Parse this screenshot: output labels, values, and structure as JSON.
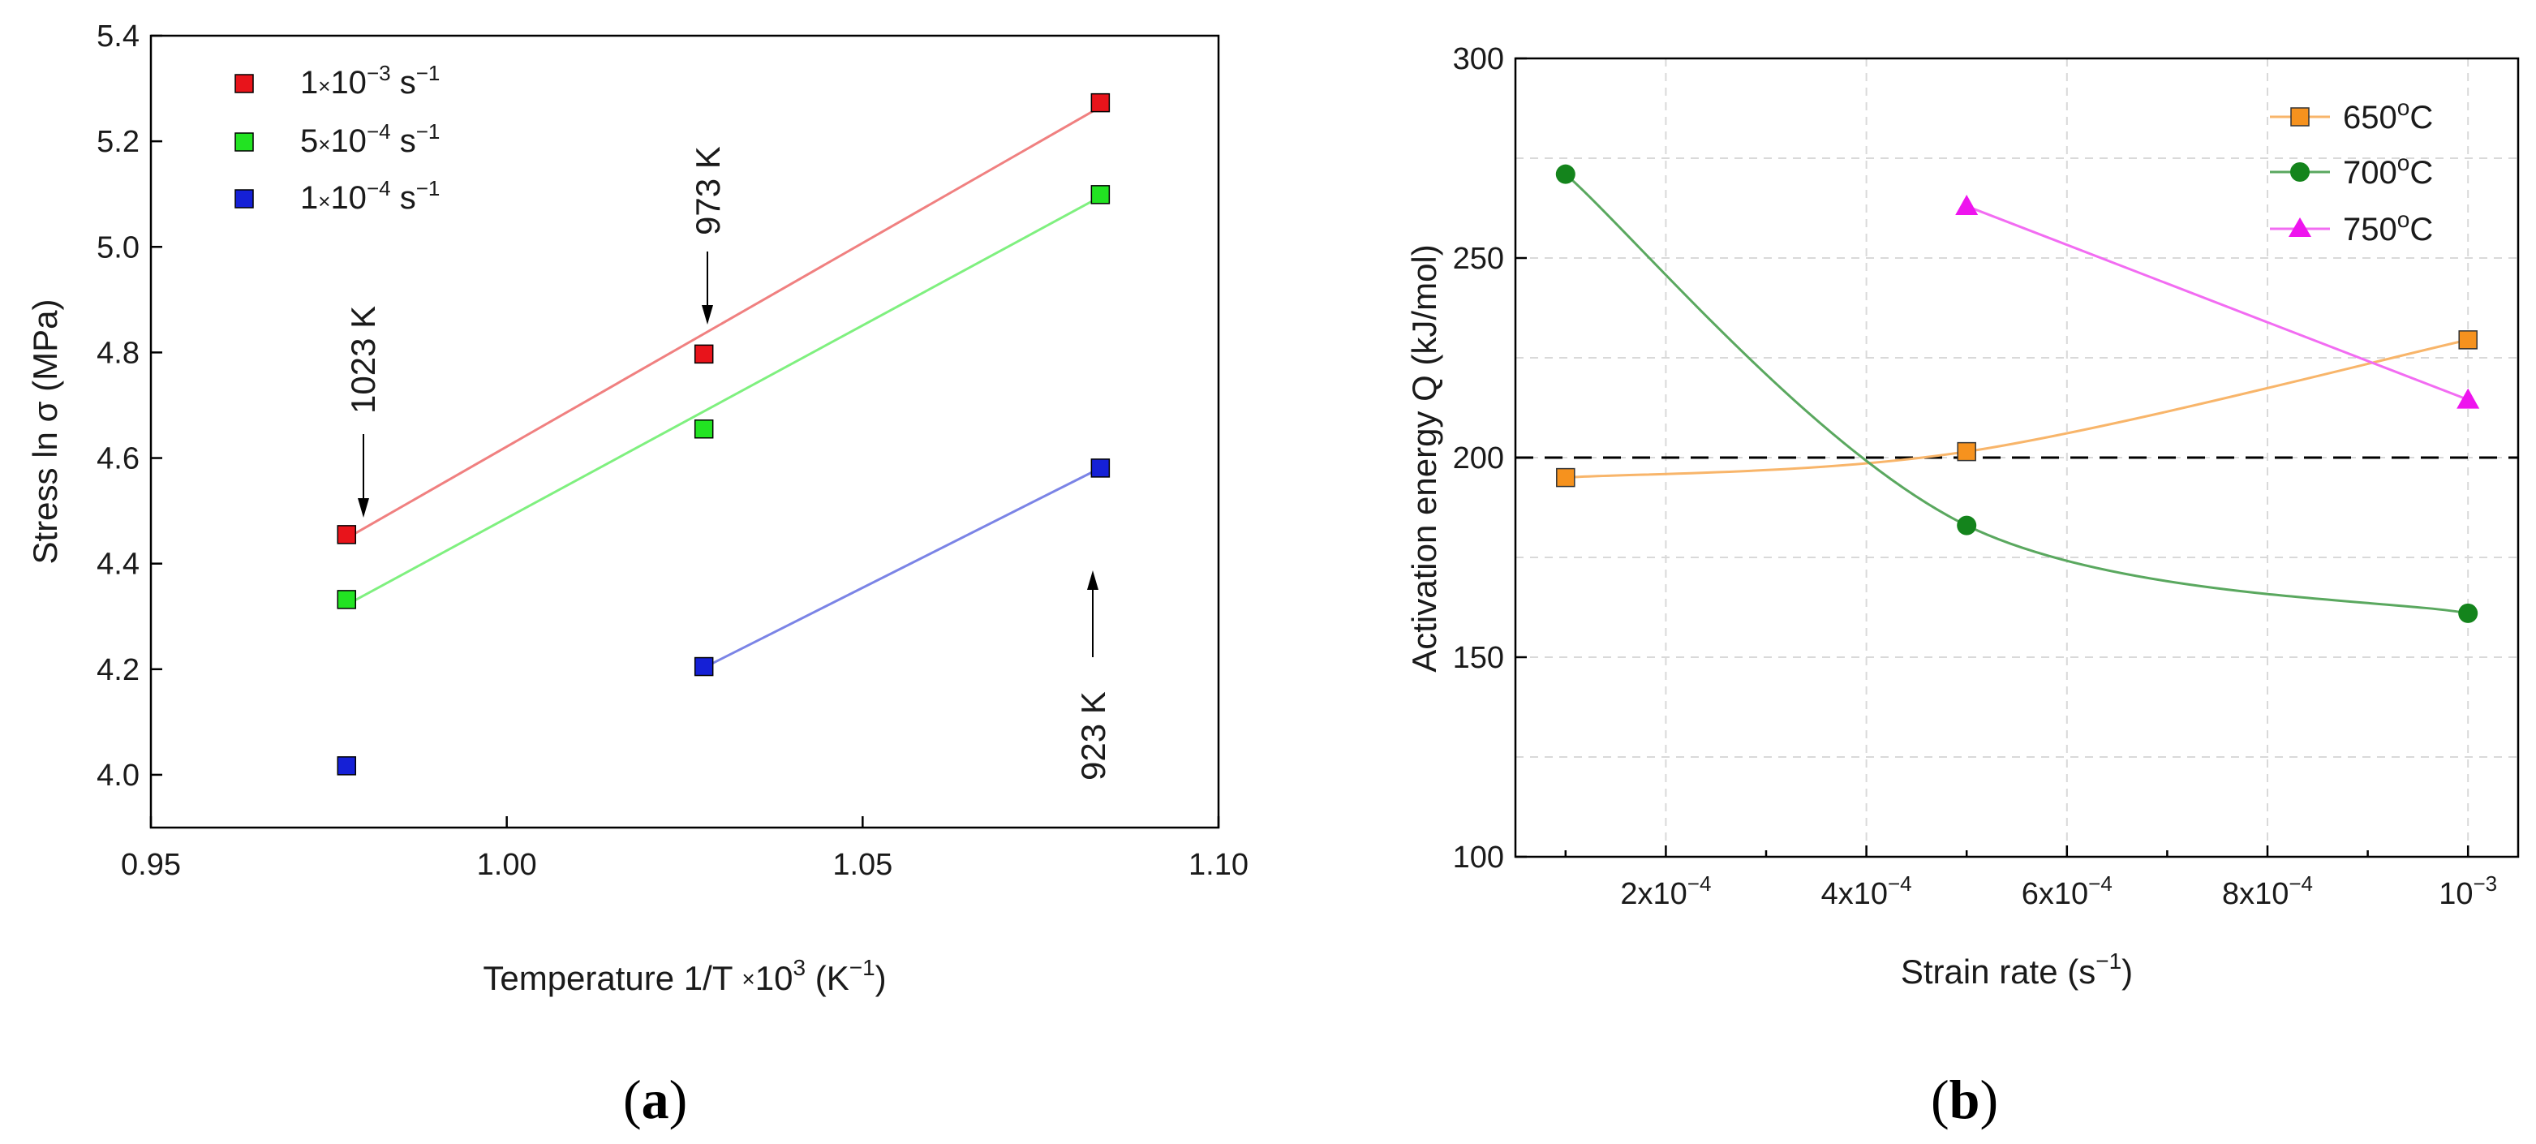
{
  "chart_data": [
    {
      "type": "scatter",
      "panel_label_parts": [
        "(",
        "a",
        ")"
      ],
      "xlabel": "Temperature 1/T ×10³ (K⁻¹)",
      "ylabel": "Stress ln σ (MPa)",
      "xlim": [
        0.95,
        1.1
      ],
      "ylim": [
        3.9,
        5.4
      ],
      "xticks": [
        "0.95",
        "1.00",
        "1.05",
        "1.10"
      ],
      "yticks": [
        "4.0",
        "4.2",
        "4.4",
        "4.6",
        "4.8",
        "5.0",
        "5.2",
        "5.4"
      ],
      "series": [
        {
          "name": "1×10⁻³ s⁻¹",
          "mantissa": "1",
          "exp": "-3",
          "color": "#e8141b",
          "line_color": "#f08080",
          "x": [
            0.9775,
            1.0277,
            1.0834
          ],
          "y": [
            4.455,
            4.797,
            5.273
          ],
          "fit": [
            [
              0.9775,
              4.448
            ],
            [
              1.0834,
              5.265
            ]
          ]
        },
        {
          "name": "5×10⁻⁴ s⁻¹",
          "mantissa": "5",
          "exp": "-4",
          "color": "#22e322",
          "line_color": "#7ff07f",
          "x": [
            0.9775,
            1.0277,
            1.0834
          ],
          "y": [
            4.332,
            4.655,
            5.099
          ],
          "fit": [
            [
              0.9775,
              4.322
            ],
            [
              1.0834,
              5.095
            ]
          ]
        },
        {
          "name": "1×10⁻⁴ s⁻¹",
          "mantissa": "1",
          "exp": "-4",
          "color": "#1520d6",
          "line_color": "#7b84e6",
          "x": [
            0.9775,
            1.0277,
            1.0834
          ],
          "y": [
            4.017,
            4.205,
            4.581
          ],
          "fit": [
            [
              1.0277,
              4.203
            ],
            [
              1.0834,
              4.581
            ]
          ]
        }
      ],
      "annotations": [
        "1023 K",
        "973 K",
        "923 K"
      ]
    },
    {
      "type": "line",
      "panel_label_parts": [
        "(",
        "b",
        ")"
      ],
      "xlabel": "Strain rate (s⁻¹)",
      "ylabel": "Activation energy Q (kJ/mol)",
      "xlim": [
        5e-05,
        0.00105
      ],
      "ylim": [
        100,
        300
      ],
      "xticks": [
        {
          "value": 0.0002,
          "mantissa": "2x10",
          "exp": "-4"
        },
        {
          "value": 0.0004,
          "mantissa": "4x10",
          "exp": "-4"
        },
        {
          "value": 0.0006,
          "mantissa": "6x10",
          "exp": "-4"
        },
        {
          "value": 0.0008,
          "mantissa": "8x10",
          "exp": "-4"
        },
        {
          "value": 0.001,
          "mantissa": "10",
          "exp": "-3"
        }
      ],
      "yticks": [
        "100",
        "150",
        "200",
        "250",
        "300"
      ],
      "reference_line": 200,
      "series": [
        {
          "name": "650°C",
          "marker": "square",
          "color": "#f6921e",
          "line_color": "#f8b56a",
          "x": [
            0.0001,
            0.0005,
            0.001
          ],
          "y": [
            195,
            201.5,
            229.5
          ]
        },
        {
          "name": "700°C",
          "marker": "circle",
          "color": "#14841c",
          "line_color": "#5aa85f",
          "x": [
            0.0001,
            0.0005,
            0.001
          ],
          "y": [
            271,
            183,
            161
          ]
        },
        {
          "name": "750°C",
          "marker": "triangle",
          "color": "#ee14ee",
          "line_color": "#f26cf2",
          "x": [
            0.0005,
            0.001
          ],
          "y": [
            263,
            214.5
          ]
        }
      ]
    }
  ]
}
